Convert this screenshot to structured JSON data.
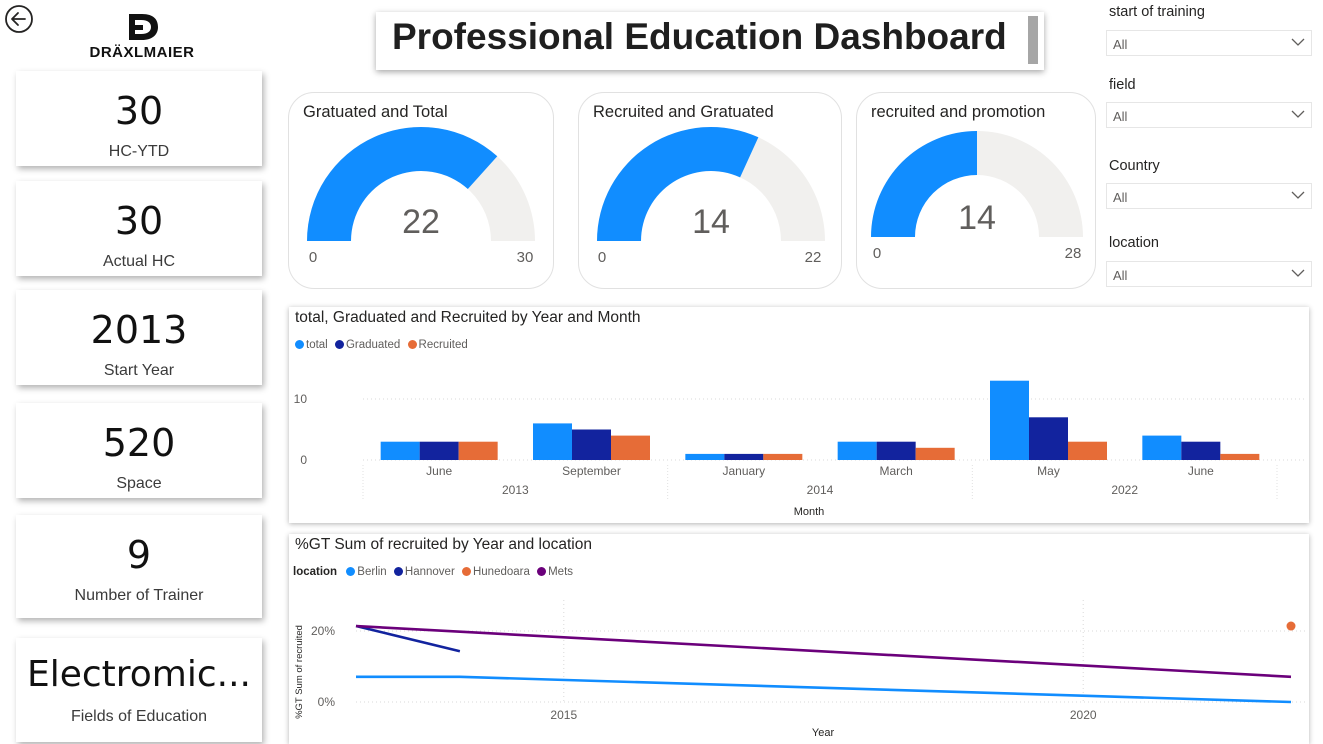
{
  "header": {
    "back_icon": "circle-arrow-left-icon",
    "logo_text": "DRÄXLMAIER",
    "title": "Professional Education Dashboard"
  },
  "kpis": [
    {
      "value": "30",
      "label": "HC-YTD"
    },
    {
      "value": "30",
      "label": "Actual HC"
    },
    {
      "value": "2013",
      "label": "Start Year"
    },
    {
      "value": "520",
      "label": "Space"
    },
    {
      "value": "9",
      "label": "Number of Trainer"
    },
    {
      "value": "Electromic...",
      "label": "Fields of Education"
    }
  ],
  "gauges": [
    {
      "title": "Gratuated and Total",
      "value": "22",
      "min": "0",
      "max": "30",
      "fraction": 0.7333
    },
    {
      "title": "Recruited and Gratuated",
      "value": "14",
      "min": "0",
      "max": "22",
      "fraction": 0.6364
    },
    {
      "title": "recruited and promotion",
      "value": "14",
      "min": "0",
      "max": "28",
      "fraction": 0.5
    }
  ],
  "slicers": [
    {
      "label": "start of training",
      "value": "All"
    },
    {
      "label": "field",
      "value": "All"
    },
    {
      "label": "Country",
      "value": "All"
    },
    {
      "label": "location",
      "value": "All"
    }
  ],
  "colors": {
    "total": "#118DFF",
    "graduated": "#12239E",
    "recruited": "#E66C37",
    "mets": "#6B007B",
    "gauge_track": "#F1F0EE"
  },
  "chart_data": [
    {
      "type": "bar",
      "title": "total, Graduated and Recruited by Year and Month",
      "xlabel": "Month",
      "ylabel": "",
      "categories": [
        "June",
        "September",
        "January",
        "March",
        "May",
        "June"
      ],
      "year_groups": [
        {
          "year": "2013",
          "months": 2
        },
        {
          "year": "2014",
          "months": 2
        },
        {
          "year": "2022",
          "months": 2
        }
      ],
      "series": [
        {
          "name": "total",
          "values": [
            3,
            6,
            1,
            3,
            13,
            4
          ]
        },
        {
          "name": "Graduated",
          "values": [
            3,
            5,
            1,
            3,
            7,
            3
          ]
        },
        {
          "name": "Recruited",
          "values": [
            3,
            4,
            1,
            2,
            3,
            1
          ]
        }
      ],
      "y_ticks": [
        "0",
        "10"
      ],
      "ylim": [
        0,
        15
      ]
    },
    {
      "type": "line",
      "title": "%GT Sum of recruited by Year and location",
      "legend_title": "location",
      "xlabel": "Year",
      "ylabel": "%GT Sum of recruited",
      "xlim": [
        2013,
        2022
      ],
      "ylim": [
        0,
        0.25
      ],
      "x_ticks": [
        {
          "value": 2015,
          "label": "2015"
        },
        {
          "value": 2020,
          "label": "2020"
        }
      ],
      "y_ticks": [
        {
          "value": 0,
          "label": "0%"
        },
        {
          "value": 0.2,
          "label": "20%"
        }
      ],
      "series": [
        {
          "name": "Berlin",
          "points": [
            [
              2013,
              0.071
            ],
            [
              2014,
              0.071
            ],
            [
              2022,
              0.0
            ]
          ]
        },
        {
          "name": "Hannover",
          "points": [
            [
              2013,
              0.214
            ],
            [
              2014,
              0.143
            ]
          ]
        },
        {
          "name": "Hunedoara",
          "points": [
            [
              2022,
              0.214
            ]
          ]
        },
        {
          "name": "Mets",
          "points": [
            [
              2013,
              0.214
            ],
            [
              2022,
              0.071
            ]
          ]
        }
      ]
    }
  ]
}
